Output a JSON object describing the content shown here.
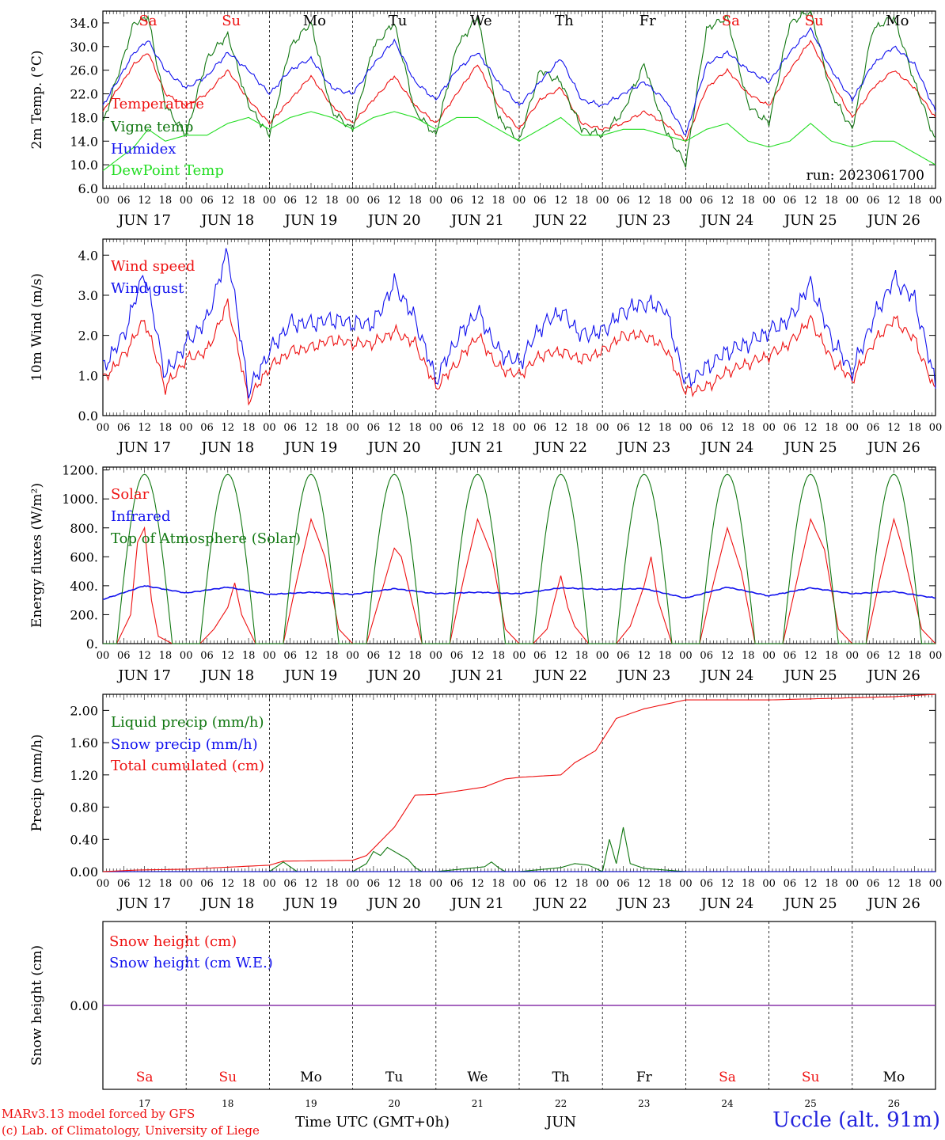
{
  "colors": {
    "red": "#ee1111",
    "blue": "#1111ee",
    "green": "#117711",
    "lightgreen": "#22dd22",
    "purple": "#8833aa",
    "axis": "#000000"
  },
  "days": [
    "17",
    "18",
    "19",
    "20",
    "21",
    "22",
    "23",
    "24",
    "25",
    "26"
  ],
  "weekdays": [
    {
      "label": "Sa",
      "weekend": true
    },
    {
      "label": "Su",
      "weekend": true
    },
    {
      "label": "Mo",
      "weekend": false
    },
    {
      "label": "Tu",
      "weekend": false
    },
    {
      "label": "We",
      "weekend": false
    },
    {
      "label": "Th",
      "weekend": false
    },
    {
      "label": "Fr",
      "weekend": false
    },
    {
      "label": "Sa",
      "weekend": true
    },
    {
      "label": "Su",
      "weekend": true
    },
    {
      "label": "Mo",
      "weekend": false
    }
  ],
  "month": "JUN",
  "hour_ticks": [
    "00",
    "06",
    "12",
    "18"
  ],
  "final_hour_tick": "00",
  "xlabel": "Time UTC (GMT+0h)",
  "run_label": "run: 2023061700",
  "footer": {
    "credit_line1": "MARv3.13 model forced by GFS",
    "credit_line2": "(c) Lab. of Climatology, University of Liege",
    "station": "Uccle (alt. 91m)"
  },
  "chart_data": [
    {
      "type": "line",
      "ylabel": "2m Temp. (°C)",
      "ylim": [
        6,
        36
      ],
      "yticks": [
        "6.0",
        "10.0",
        "14.0",
        "18.0",
        "22.0",
        "26.0",
        "30.0",
        "34.0"
      ],
      "tick_values": [
        6,
        10,
        14,
        18,
        22,
        26,
        30,
        34
      ],
      "series": [
        {
          "name": "Temperature",
          "color": "red",
          "x": [
            0,
            9,
            13,
            18,
            24,
            30,
            36,
            42,
            48,
            54,
            60,
            66,
            72,
            78,
            84,
            90,
            96,
            102,
            108,
            114,
            120,
            126,
            132,
            138,
            144,
            150,
            156,
            162,
            168,
            174,
            180,
            186,
            192,
            198,
            204,
            210,
            216,
            222,
            228,
            234,
            240
          ],
          "values": [
            19,
            27,
            29,
            22,
            20,
            22,
            26,
            21,
            17,
            21,
            25,
            20,
            17,
            21,
            25,
            20,
            17,
            22,
            27,
            20,
            16,
            21,
            23,
            17,
            16,
            17,
            19,
            17,
            14,
            23,
            26,
            22,
            20,
            26,
            31,
            24,
            18,
            23,
            26,
            23,
            18
          ]
        },
        {
          "name": "Vigne temp",
          "color": "green",
          "x": [
            0,
            9,
            13,
            18,
            24,
            30,
            36,
            42,
            48,
            54,
            60,
            66,
            72,
            78,
            84,
            90,
            96,
            102,
            108,
            114,
            120,
            126,
            132,
            138,
            144,
            150,
            156,
            162,
            168,
            174,
            180,
            186,
            192,
            198,
            204,
            210,
            216,
            222,
            228,
            234,
            240
          ],
          "values": [
            17,
            34,
            35,
            20,
            15,
            28,
            32,
            20,
            15,
            30,
            34,
            19,
            16,
            30,
            34,
            19,
            15,
            30,
            35,
            18,
            14,
            26,
            24,
            16,
            15,
            19,
            27,
            16,
            10,
            33,
            35,
            20,
            17,
            34,
            36,
            22,
            16,
            33,
            35,
            24,
            14
          ]
        },
        {
          "name": "Humidex",
          "color": "blue",
          "x": [
            0,
            9,
            13,
            18,
            24,
            30,
            36,
            42,
            48,
            54,
            60,
            66,
            72,
            78,
            84,
            90,
            96,
            102,
            108,
            114,
            120,
            126,
            132,
            138,
            144,
            150,
            156,
            162,
            168,
            174,
            180,
            186,
            192,
            198,
            204,
            210,
            216,
            222,
            228,
            234,
            240
          ],
          "values": [
            20,
            29,
            31,
            26,
            23,
            25,
            29,
            26,
            22,
            26,
            28,
            23,
            22,
            27,
            31,
            24,
            21,
            26,
            29,
            24,
            20,
            24,
            28,
            21,
            20,
            22,
            24,
            21,
            15,
            27,
            29,
            26,
            24,
            29,
            33,
            26,
            21,
            27,
            30,
            27,
            19
          ]
        },
        {
          "name": "DewPoint Temp",
          "color": "lightgreen",
          "x": [
            0,
            9,
            13,
            18,
            24,
            30,
            36,
            42,
            48,
            54,
            60,
            66,
            72,
            78,
            84,
            90,
            96,
            102,
            108,
            114,
            120,
            126,
            132,
            138,
            144,
            150,
            156,
            162,
            168,
            174,
            180,
            186,
            192,
            198,
            204,
            210,
            216,
            222,
            228,
            234,
            240
          ],
          "values": [
            9,
            13,
            16,
            14,
            15,
            15,
            17,
            18,
            16,
            18,
            19,
            18,
            16,
            18,
            19,
            18,
            16,
            18,
            18,
            16,
            14,
            16,
            18,
            15,
            15,
            16,
            16,
            15,
            14,
            16,
            17,
            14,
            13,
            14,
            17,
            14,
            13,
            14,
            14,
            12,
            10
          ]
        }
      ]
    },
    {
      "type": "line",
      "ylabel": "10m Wind (m/s)",
      "ylim": [
        0,
        4.4
      ],
      "yticks": [
        "0.0",
        "1.0",
        "2.0",
        "3.0",
        "4.0"
      ],
      "tick_values": [
        0,
        1,
        2,
        3,
        4
      ],
      "series": [
        {
          "name": "Wind speed",
          "color": "red",
          "x": [
            0,
            6,
            12,
            18,
            24,
            30,
            36,
            42,
            48,
            54,
            60,
            66,
            72,
            78,
            84,
            90,
            96,
            102,
            108,
            114,
            120,
            126,
            132,
            138,
            144,
            150,
            156,
            162,
            168,
            174,
            180,
            186,
            192,
            198,
            204,
            210,
            216,
            222,
            228,
            234,
            240
          ],
          "values": [
            0.9,
            1.5,
            2.4,
            0.7,
            1.4,
            1.6,
            2.8,
            0.4,
            1.2,
            1.6,
            1.7,
            1.9,
            1.8,
            1.8,
            2.1,
            1.8,
            0.7,
            1.3,
            2.0,
            1.2,
            1.0,
            1.5,
            1.6,
            1.4,
            1.6,
            2.0,
            2.0,
            1.7,
            0.6,
            0.7,
            1.1,
            1.3,
            1.5,
            1.8,
            2.4,
            1.4,
            0.9,
            1.8,
            2.4,
            1.9,
            0.6
          ]
        },
        {
          "name": "Wind gust",
          "color": "blue",
          "x": [
            0,
            6,
            12,
            18,
            24,
            30,
            36,
            42,
            48,
            54,
            60,
            66,
            72,
            78,
            84,
            90,
            96,
            102,
            108,
            114,
            120,
            126,
            132,
            138,
            144,
            150,
            156,
            162,
            168,
            174,
            180,
            186,
            192,
            198,
            204,
            210,
            216,
            222,
            228,
            234,
            240
          ],
          "values": [
            1.2,
            2.0,
            3.6,
            1.0,
            1.8,
            2.4,
            4.1,
            0.6,
            1.6,
            2.3,
            2.3,
            2.4,
            2.3,
            2.3,
            3.3,
            2.4,
            0.9,
            1.9,
            2.6,
            1.6,
            1.3,
            2.2,
            2.6,
            2.0,
            2.1,
            2.6,
            2.8,
            2.7,
            0.8,
            1.2,
            1.6,
            1.8,
            2.1,
            2.4,
            3.3,
            1.9,
            1.1,
            2.4,
            3.4,
            2.9,
            0.8
          ]
        }
      ]
    },
    {
      "type": "line",
      "ylabel": "Energy fluxes (W/m²)",
      "ylim": [
        0,
        1220
      ],
      "yticks": [
        "0.",
        "200.",
        "400.",
        "600.",
        "800.",
        "1000.",
        "1200."
      ],
      "tick_values": [
        0,
        200,
        400,
        600,
        800,
        1000,
        1200
      ],
      "toa_peak": 1170,
      "series": [
        {
          "name": "Solar",
          "color": "red",
          "x": [
            0,
            4,
            8,
            10,
            12,
            14,
            16,
            20,
            24,
            28,
            32,
            36,
            38,
            40,
            44,
            48,
            52,
            56,
            60,
            64,
            68,
            72,
            76,
            80,
            84,
            86,
            88,
            92,
            96,
            100,
            104,
            108,
            112,
            116,
            120,
            124,
            128,
            132,
            134,
            136,
            140,
            144,
            148,
            152,
            156,
            158,
            160,
            164,
            168,
            172,
            176,
            180,
            184,
            188,
            192,
            196,
            200,
            204,
            208,
            212,
            216,
            220,
            224,
            228,
            230,
            232,
            236,
            240
          ],
          "values": [
            0,
            0,
            200,
            700,
            800,
            300,
            50,
            0,
            0,
            0,
            100,
            250,
            420,
            200,
            0,
            0,
            0,
            450,
            860,
            600,
            100,
            0,
            0,
            330,
            660,
            600,
            400,
            0,
            0,
            0,
            450,
            860,
            620,
            100,
            0,
            0,
            100,
            470,
            250,
            120,
            0,
            0,
            0,
            120,
            400,
            600,
            300,
            0,
            0,
            0,
            420,
            800,
            500,
            0,
            0,
            0,
            430,
            860,
            650,
            100,
            0,
            0,
            450,
            860,
            700,
            500,
            100,
            0
          ]
        },
        {
          "name": "Infrared",
          "color": "blue",
          "x": [
            0,
            12,
            24,
            36,
            48,
            60,
            72,
            84,
            96,
            108,
            120,
            132,
            144,
            156,
            168,
            180,
            192,
            204,
            216,
            228,
            240
          ],
          "values": [
            305,
            400,
            350,
            390,
            340,
            355,
            340,
            380,
            345,
            355,
            345,
            385,
            375,
            380,
            315,
            390,
            330,
            385,
            345,
            360,
            315
          ]
        },
        {
          "name": "Top of Atmosphere (Solar)",
          "color": "green",
          "note": "daily solar cycle, peak 1170 at 12 UTC"
        }
      ]
    },
    {
      "type": "line",
      "ylabel": "Precip (mm/h)",
      "ylim": [
        0,
        2.2
      ],
      "yticks": [
        "0.00",
        "0.40",
        "0.80",
        "1.20",
        "1.60",
        "2.00"
      ],
      "tick_values": [
        0,
        0.4,
        0.8,
        1.2,
        1.6,
        2.0
      ],
      "series": [
        {
          "name": "Liquid precip (mm/h)",
          "color": "green",
          "x": [
            0,
            48,
            52,
            56,
            72,
            76,
            78,
            80,
            82,
            84,
            86,
            88,
            90,
            92,
            96,
            110,
            112,
            114,
            116,
            120,
            132,
            136,
            140,
            144,
            146,
            148,
            150,
            152,
            156,
            168,
            240
          ],
          "values": [
            0,
            0,
            0.12,
            0,
            0,
            0.1,
            0.25,
            0.2,
            0.3,
            0.25,
            0.2,
            0.15,
            0.05,
            0,
            0,
            0.06,
            0.12,
            0.05,
            0,
            0,
            0.05,
            0.1,
            0.08,
            0,
            0.4,
            0.1,
            0.55,
            0.1,
            0.04,
            0,
            0
          ]
        },
        {
          "name": "Snow precip (mm/h)",
          "color": "blue",
          "x": [
            0,
            240
          ],
          "values": [
            0,
            0
          ]
        },
        {
          "name": "Total cumulated (cm)",
          "color": "red",
          "x": [
            0,
            10,
            24,
            48,
            52,
            72,
            76,
            84,
            90,
            96,
            110,
            116,
            120,
            132,
            136,
            142,
            145,
            148,
            156,
            168,
            192,
            228,
            240
          ],
          "values": [
            0,
            0.02,
            0.03,
            0.08,
            0.13,
            0.14,
            0.2,
            0.55,
            0.95,
            0.96,
            1.05,
            1.15,
            1.17,
            1.2,
            1.35,
            1.5,
            1.7,
            1.9,
            2.02,
            2.13,
            2.13,
            2.17,
            2.2
          ]
        }
      ]
    },
    {
      "type": "line",
      "ylabel": "Snow height (cm)",
      "ylim": [
        -1,
        1
      ],
      "yticks": [
        "0.00"
      ],
      "tick_values": [
        0
      ],
      "series": [
        {
          "name": "Snow height (cm)",
          "color": "red",
          "x": [
            0,
            240
          ],
          "values": [
            0,
            0
          ]
        },
        {
          "name": "Snow height (cm W.E.)",
          "color": "blue",
          "x": [
            0,
            240
          ],
          "values": [
            0,
            0
          ]
        }
      ]
    }
  ]
}
